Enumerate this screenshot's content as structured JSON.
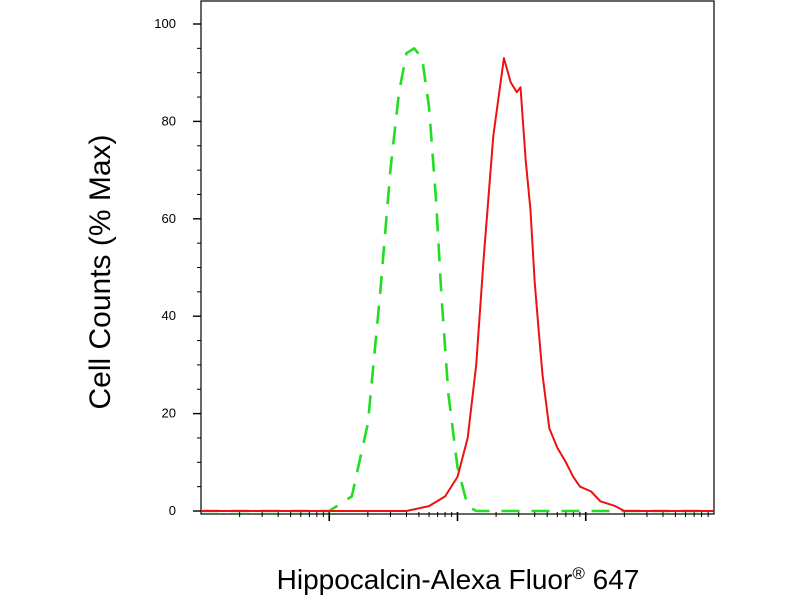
{
  "chart_data": {
    "type": "line",
    "xlabel": "Hippocalcin-Alexa Fluor",
    "xlabel_superscript": "®",
    "xlabel_suffix": " 647",
    "ylabel": "Cell Counts (% Max)",
    "x_scale": "log",
    "xlim": [
      0.1,
      1000
    ],
    "ylim": [
      0,
      100
    ],
    "y_ticks": [
      "0",
      "20",
      "40",
      "60",
      "80",
      "100"
    ],
    "series": [
      {
        "line_style": "dashed",
        "color": "#22dd22",
        "x": [
          0.1,
          0.4,
          0.8,
          1.0,
          1.5,
          2.0,
          2.5,
          3.0,
          3.5,
          4.0,
          4.6,
          5.3,
          6.0,
          6.8,
          7.5,
          8.5,
          10.0,
          12.0,
          14.0,
          17.0,
          22.0,
          30.0,
          50.0,
          100.0,
          300.0,
          1000.0
        ],
        "y": [
          0,
          0,
          0,
          0,
          3,
          18,
          45,
          70,
          86,
          94,
          95,
          93,
          83,
          64,
          44,
          24,
          9,
          1,
          0,
          0,
          0,
          0,
          0,
          0,
          0,
          0
        ]
      },
      {
        "line_style": "solid",
        "color": "#ee1111",
        "x": [
          0.1,
          0.5,
          1.5,
          4.0,
          6.0,
          8.0,
          10.0,
          12.0,
          14.0,
          16.0,
          19.0,
          23.0,
          26.0,
          29.0,
          31.0,
          34.0,
          37.0,
          40.0,
          43.0,
          46.0,
          52.0,
          60.0,
          70.0,
          80.0,
          90.0,
          110.0,
          130.0,
          170.0,
          200.0,
          250.0,
          300.0,
          400.0,
          600.0,
          1000.0
        ],
        "y": [
          0,
          0,
          0,
          0,
          1,
          3,
          7,
          15,
          30,
          52,
          77,
          93,
          88,
          86,
          87,
          72,
          62,
          47,
          37,
          28,
          17,
          13,
          10,
          7,
          5,
          4,
          2,
          1,
          0,
          0,
          0,
          0,
          0,
          0
        ]
      }
    ]
  }
}
